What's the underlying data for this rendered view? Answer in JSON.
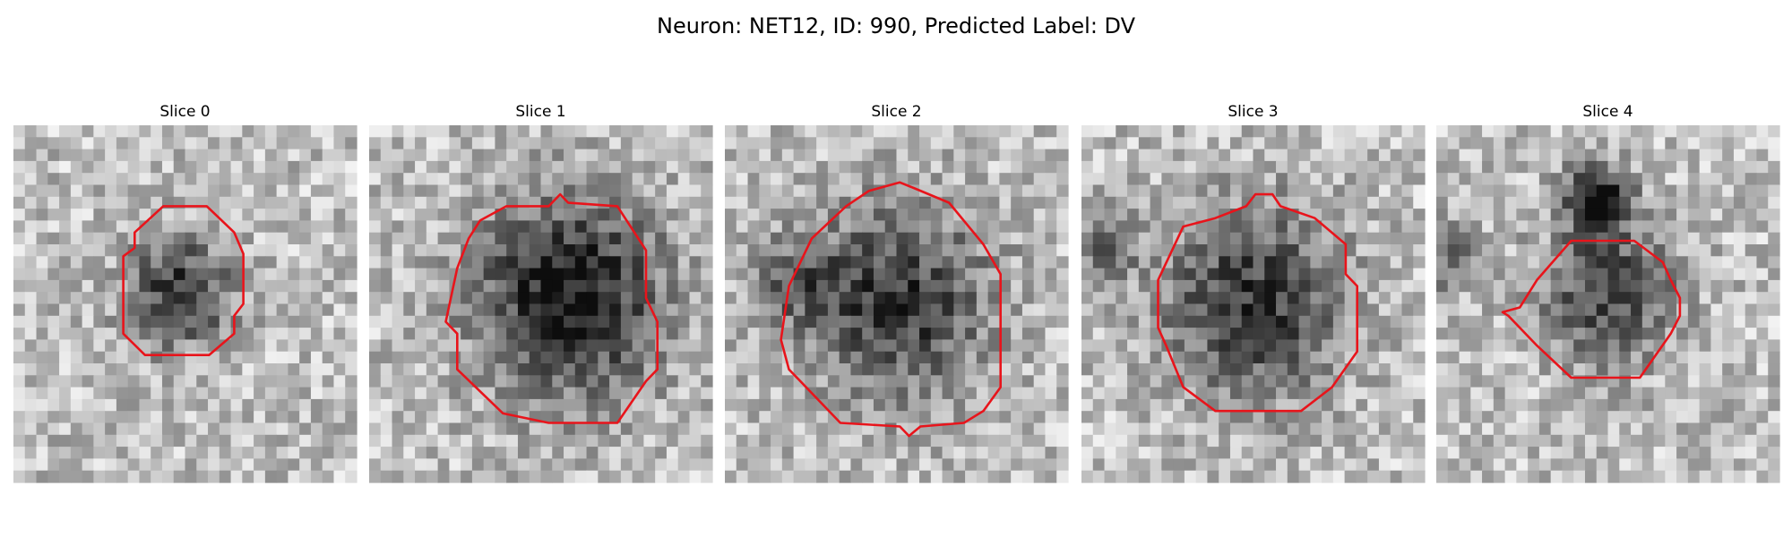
{
  "header": {
    "title": "Neuron: NET12, ID: 990, Predicted Label: DV"
  },
  "panels": [
    {
      "title": "Slice 0"
    },
    {
      "title": "Slice 1"
    },
    {
      "title": "Slice 2"
    },
    {
      "title": "Slice 3"
    },
    {
      "title": "Slice 4"
    }
  ]
}
